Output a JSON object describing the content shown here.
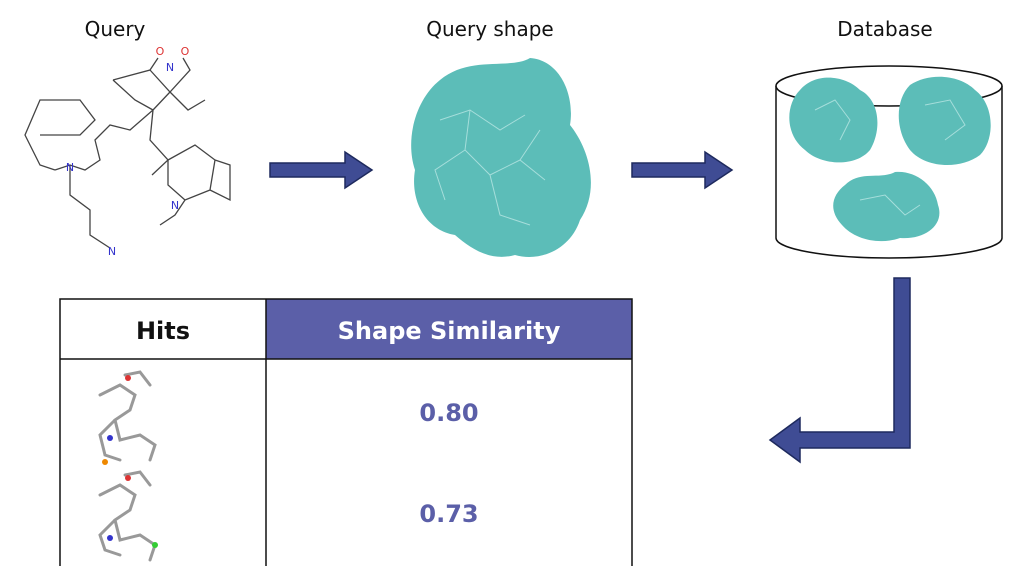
{
  "steps": [
    {
      "label": "Query"
    },
    {
      "label": "Query shape"
    },
    {
      "label": "Database"
    }
  ],
  "molecule": {
    "atoms": [
      "O",
      "N",
      "O",
      "N",
      "N",
      "N"
    ]
  },
  "table": {
    "headers": [
      "Hits",
      "Shape Similarity"
    ],
    "rows": [
      [
        "0.80"
      ],
      [
        "0.73"
      ]
    ]
  }
}
